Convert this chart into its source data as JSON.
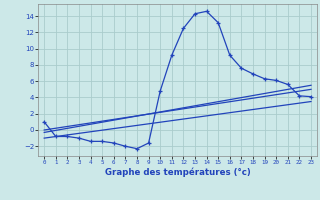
{
  "xlabel": "Graphe des températures (°c)",
  "xlim": [
    -0.5,
    23.5
  ],
  "ylim": [
    -3.2,
    15.5
  ],
  "yticks": [
    -2,
    0,
    2,
    4,
    6,
    8,
    10,
    12,
    14
  ],
  "xticks": [
    0,
    1,
    2,
    3,
    4,
    5,
    6,
    7,
    8,
    9,
    10,
    11,
    12,
    13,
    14,
    15,
    16,
    17,
    18,
    19,
    20,
    21,
    22,
    23
  ],
  "bg_color": "#cce8e8",
  "grid_color": "#aacccc",
  "line_color": "#2244bb",
  "main_x": [
    0,
    1,
    2,
    3,
    4,
    5,
    6,
    7,
    8,
    9,
    10,
    11,
    12,
    13,
    14,
    15,
    16,
    17,
    18,
    19,
    20,
    21,
    22,
    23
  ],
  "main_y": [
    1.0,
    -0.8,
    -0.8,
    -1.0,
    -1.4,
    -1.4,
    -1.6,
    -2.0,
    -2.3,
    -1.6,
    4.8,
    9.2,
    12.5,
    14.3,
    14.6,
    13.2,
    9.2,
    7.6,
    6.9,
    6.3,
    6.1,
    5.6,
    4.2,
    4.1
  ],
  "trend1_x": [
    0,
    23
  ],
  "trend1_y": [
    0.0,
    5.0
  ],
  "trend2_x": [
    0,
    23
  ],
  "trend2_y": [
    -0.3,
    5.5
  ],
  "trend3_x": [
    0,
    23
  ],
  "trend3_y": [
    -1.0,
    3.5
  ]
}
